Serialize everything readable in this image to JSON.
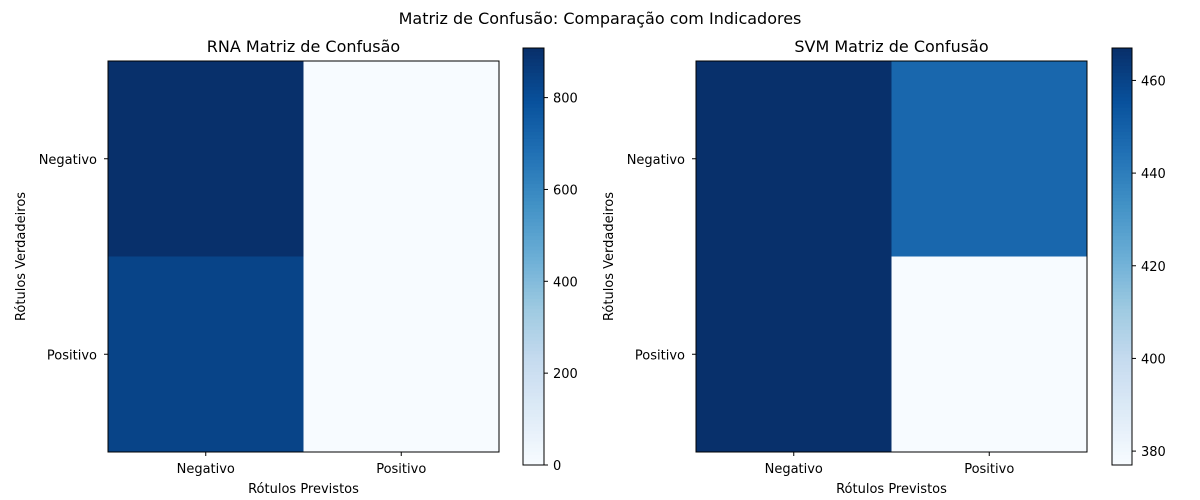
{
  "figure": {
    "suptitle": "Matriz de Confusão: Comparação com Indicadores"
  },
  "chart_data": [
    {
      "type": "heatmap",
      "title": "RNA Matriz de Confusão",
      "xlabel": "Rótulos Previstos",
      "ylabel": "Rótulos Verdadeiros",
      "x_categories": [
        "Negativo",
        "Positivo"
      ],
      "y_categories": [
        "Negativo",
        "Positivo"
      ],
      "values": [
        [
          908,
          0
        ],
        [
          840,
          1
        ]
      ],
      "colormap": "Blues",
      "vmin": 0,
      "vmax": 908,
      "colorbar_ticks": [
        0,
        200,
        400,
        600,
        800
      ],
      "grid": false
    },
    {
      "type": "heatmap",
      "title": "SVM Matriz de Confusão",
      "xlabel": "Rótulos Previstos",
      "ylabel": "Rótulos Verdadeiros",
      "x_categories": [
        "Negativo",
        "Positivo"
      ],
      "y_categories": [
        "Negativo",
        "Positivo"
      ],
      "values": [
        [
          467,
          448
        ],
        [
          467,
          377
        ]
      ],
      "colormap": "Blues",
      "vmin": 377,
      "vmax": 467,
      "colorbar_ticks": [
        380,
        400,
        420,
        440,
        460
      ],
      "grid": false
    }
  ]
}
